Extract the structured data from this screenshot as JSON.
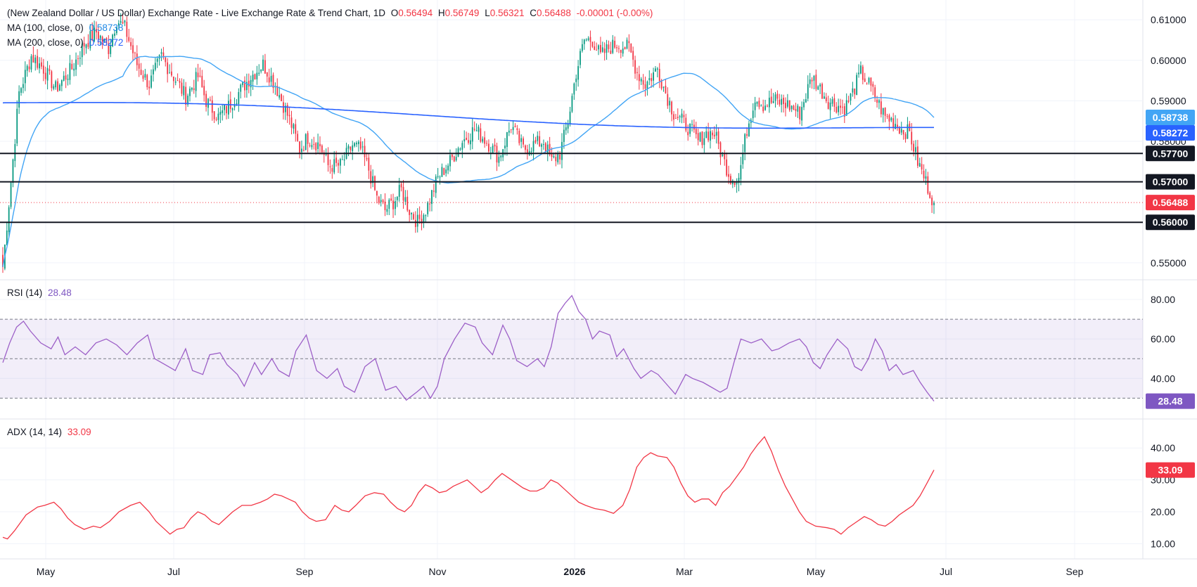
{
  "header": {
    "title": "(New Zealand Dollar / US Dollar) Exchange Rate - Live Exchange Rate & Trend Chart, 1D",
    "o_label": "O",
    "o_value": "0.56494",
    "h_label": "H",
    "h_value": "0.56749",
    "l_label": "L",
    "l_value": "0.56321",
    "c_label": "C",
    "c_value": "0.56488",
    "change": "-0.00001 (-0.00%)"
  },
  "indicators": {
    "ma100_label": "MA (100, close, 0)",
    "ma100_value": "0.58738",
    "ma200_label": "MA (200, close, 0)",
    "ma200_value": "0.58272",
    "rsi_label": "RSI (14)",
    "rsi_value": "28.48",
    "adx_label": "ADX (14, 14)",
    "adx_value": "33.09"
  },
  "colors": {
    "up": "#089981",
    "down": "#f23645",
    "ma100": "#42a5f5",
    "ma200": "#2962ff",
    "rsi": "#9c5fc7",
    "adx": "#f23645",
    "level": "#131722",
    "grid": "#f0f3fa"
  },
  "chart_data": [
    {
      "type": "candlestick",
      "title": "(New Zealand Dollar / US Dollar) Exchange Rate - Live Exchange Rate & Trend Chart, 1D",
      "x_ticks": [
        "May",
        "Jul",
        "Sep",
        "Nov",
        "2026",
        "Mar",
        "May",
        "Jul",
        "Sep"
      ],
      "y_ticks": [
        "0.61000",
        "0.60000",
        "0.59000",
        "0.58000",
        "0.55000"
      ],
      "ylim": [
        0.5465,
        0.6135
      ],
      "horizontal_levels": [
        {
          "label": "0.57700",
          "value": 0.577
        },
        {
          "label": "0.57000",
          "value": 0.57
        },
        {
          "label": "0.56000",
          "value": 0.56
        }
      ],
      "last_price": {
        "label": "0.56488",
        "value": 0.56488
      },
      "ma100_badge": "0.58738",
      "ma200_badge": "0.58272",
      "close_path": [
        [
          0,
          0.549
        ],
        [
          4,
          0.57
        ],
        [
          8,
          0.592
        ],
        [
          14,
          0.601
        ],
        [
          20,
          0.598
        ],
        [
          26,
          0.593
        ],
        [
          34,
          0.598
        ],
        [
          40,
          0.604
        ],
        [
          46,
          0.607
        ],
        [
          52,
          0.603
        ],
        [
          56,
          0.61
        ],
        [
          60,
          0.608
        ],
        [
          66,
          0.599
        ],
        [
          72,
          0.594
        ],
        [
          78,
          0.601
        ],
        [
          84,
          0.596
        ],
        [
          90,
          0.591
        ],
        [
          96,
          0.596
        ],
        [
          100,
          0.59
        ],
        [
          106,
          0.586
        ],
        [
          110,
          0.588
        ],
        [
          116,
          0.592
        ],
        [
          122,
          0.596
        ],
        [
          128,
          0.599
        ],
        [
          134,
          0.594
        ],
        [
          138,
          0.589
        ],
        [
          142,
          0.584
        ],
        [
          146,
          0.578
        ],
        [
          150,
          0.581
        ],
        [
          156,
          0.579
        ],
        [
          160,
          0.574
        ],
        [
          166,
          0.574
        ],
        [
          172,
          0.579
        ],
        [
          176,
          0.578
        ],
        [
          180,
          0.573
        ],
        [
          184,
          0.566
        ],
        [
          188,
          0.563
        ],
        [
          192,
          0.565
        ],
        [
          196,
          0.568
        ],
        [
          200,
          0.563
        ],
        [
          204,
          0.56
        ],
        [
          208,
          0.563
        ],
        [
          214,
          0.571
        ],
        [
          220,
          0.575
        ],
        [
          226,
          0.58
        ],
        [
          232,
          0.583
        ],
        [
          238,
          0.58
        ],
        [
          244,
          0.576
        ],
        [
          250,
          0.584
        ],
        [
          256,
          0.578
        ],
        [
          260,
          0.579
        ],
        [
          266,
          0.58
        ],
        [
          270,
          0.575
        ],
        [
          274,
          0.577
        ],
        [
          278,
          0.585
        ],
        [
          282,
          0.597
        ],
        [
          286,
          0.605
        ],
        [
          290,
          0.605
        ],
        [
          294,
          0.601
        ],
        [
          298,
          0.603
        ],
        [
          302,
          0.604
        ],
        [
          308,
          0.603
        ],
        [
          312,
          0.597
        ],
        [
          316,
          0.594
        ],
        [
          322,
          0.598
        ],
        [
          326,
          0.592
        ],
        [
          330,
          0.587
        ],
        [
          334,
          0.585
        ],
        [
          338,
          0.583
        ],
        [
          342,
          0.58
        ],
        [
          346,
          0.582
        ],
        [
          350,
          0.582
        ],
        [
          354,
          0.576
        ],
        [
          358,
          0.571
        ],
        [
          362,
          0.571
        ],
        [
          366,
          0.583
        ],
        [
          370,
          0.591
        ],
        [
          374,
          0.589
        ],
        [
          380,
          0.59
        ],
        [
          386,
          0.589
        ],
        [
          392,
          0.587
        ],
        [
          398,
          0.596
        ],
        [
          402,
          0.593
        ],
        [
          406,
          0.59
        ],
        [
          410,
          0.589
        ],
        [
          414,
          0.588
        ],
        [
          418,
          0.592
        ],
        [
          422,
          0.597
        ],
        [
          426,
          0.594
        ],
        [
          430,
          0.59
        ],
        [
          434,
          0.586
        ],
        [
          438,
          0.585
        ],
        [
          442,
          0.583
        ],
        [
          446,
          0.582
        ],
        [
          450,
          0.575
        ],
        [
          454,
          0.57
        ],
        [
          458,
          0.5649
        ]
      ]
    },
    {
      "type": "line",
      "title": "RSI (14)",
      "y_ticks": [
        "80.00",
        "60.00",
        "40.00"
      ],
      "ylim": [
        23,
        85
      ],
      "bands": [
        70,
        50,
        30
      ],
      "last_value": 28.48,
      "points": [
        [
          0,
          48
        ],
        [
          4,
          58
        ],
        [
          8,
          66
        ],
        [
          12,
          69
        ],
        [
          16,
          64
        ],
        [
          22,
          58
        ],
        [
          28,
          55
        ],
        [
          32,
          61
        ],
        [
          36,
          52
        ],
        [
          42,
          56
        ],
        [
          48,
          52
        ],
        [
          54,
          58
        ],
        [
          60,
          60
        ],
        [
          66,
          57
        ],
        [
          72,
          52
        ],
        [
          78,
          58
        ],
        [
          84,
          62
        ],
        [
          88,
          50
        ],
        [
          94,
          47
        ],
        [
          100,
          44
        ],
        [
          106,
          55
        ],
        [
          110,
          44
        ],
        [
          116,
          42
        ],
        [
          120,
          52
        ],
        [
          126,
          53
        ],
        [
          130,
          47
        ],
        [
          136,
          42
        ],
        [
          140,
          36
        ],
        [
          146,
          48
        ],
        [
          150,
          42
        ],
        [
          156,
          50
        ],
        [
          160,
          44
        ],
        [
          166,
          41
        ],
        [
          170,
          54
        ],
        [
          176,
          62
        ],
        [
          182,
          44
        ],
        [
          188,
          40
        ],
        [
          194,
          45
        ],
        [
          198,
          36
        ],
        [
          204,
          33
        ],
        [
          210,
          46
        ],
        [
          216,
          50
        ],
        [
          222,
          34
        ],
        [
          228,
          36
        ],
        [
          234,
          29
        ],
        [
          240,
          33
        ],
        [
          244,
          36
        ],
        [
          248,
          30
        ],
        [
          252,
          36
        ],
        [
          256,
          50
        ],
        [
          262,
          60
        ],
        [
          268,
          68
        ],
        [
          274,
          66
        ],
        [
          278,
          58
        ],
        [
          284,
          52
        ],
        [
          290,
          67
        ],
        [
          294,
          60
        ],
        [
          298,
          49
        ],
        [
          304,
          46
        ],
        [
          310,
          50
        ],
        [
          314,
          46
        ],
        [
          318,
          56
        ],
        [
          322,
          73
        ],
        [
          326,
          78
        ],
        [
          330,
          82
        ],
        [
          334,
          74
        ],
        [
          338,
          70
        ],
        [
          342,
          60
        ],
        [
          346,
          64
        ],
        [
          352,
          62
        ],
        [
          356,
          51
        ],
        [
          360,
          55
        ],
        [
          366,
          45
        ],
        [
          370,
          40
        ],
        [
          376,
          44
        ],
        [
          380,
          42
        ],
        [
          386,
          36
        ],
        [
          390,
          32
        ],
        [
          396,
          42
        ],
        [
          400,
          40
        ],
        [
          406,
          38
        ],
        [
          410,
          36
        ],
        [
          416,
          33
        ],
        [
          420,
          35
        ],
        [
          424,
          48
        ],
        [
          428,
          60
        ],
        [
          434,
          58
        ],
        [
          440,
          60
        ],
        [
          446,
          54
        ],
        [
          450,
          55
        ],
        [
          456,
          58
        ],
        [
          462,
          60
        ],
        [
          466,
          56
        ],
        [
          470,
          48
        ],
        [
          474,
          45
        ],
        [
          478,
          52
        ],
        [
          484,
          60
        ],
        [
          490,
          55
        ],
        [
          494,
          46
        ],
        [
          498,
          44
        ],
        [
          502,
          50
        ],
        [
          506,
          60
        ],
        [
          510,
          54
        ],
        [
          514,
          44
        ],
        [
          518,
          47
        ],
        [
          522,
          42
        ],
        [
          528,
          44
        ],
        [
          532,
          38
        ],
        [
          536,
          33
        ],
        [
          540,
          28.48
        ]
      ]
    },
    {
      "type": "line",
      "title": "ADX (14, 14)",
      "y_ticks": [
        "40.00",
        "30.00",
        "20.00",
        "10.00"
      ],
      "ylim": [
        7,
        46
      ],
      "last_value": 33.09,
      "points": [
        [
          0,
          12
        ],
        [
          4,
          11.5
        ],
        [
          10,
          14
        ],
        [
          20,
          19
        ],
        [
          30,
          21.5
        ],
        [
          36,
          22
        ],
        [
          44,
          23
        ],
        [
          50,
          21
        ],
        [
          56,
          18
        ],
        [
          62,
          16
        ],
        [
          70,
          14.5
        ],
        [
          78,
          15.5
        ],
        [
          84,
          15
        ],
        [
          92,
          17
        ],
        [
          100,
          20
        ],
        [
          110,
          22
        ],
        [
          118,
          23
        ],
        [
          126,
          20
        ],
        [
          132,
          17
        ],
        [
          138,
          15
        ],
        [
          144,
          13
        ],
        [
          150,
          14.5
        ],
        [
          156,
          15
        ],
        [
          162,
          18
        ],
        [
          168,
          20
        ],
        [
          174,
          19
        ],
        [
          180,
          17
        ],
        [
          186,
          16
        ],
        [
          192,
          18
        ],
        [
          198,
          20
        ],
        [
          206,
          22
        ],
        [
          214,
          22
        ],
        [
          222,
          23
        ],
        [
          228,
          24
        ],
        [
          234,
          25.5
        ],
        [
          240,
          25
        ],
        [
          246,
          24
        ],
        [
          252,
          23
        ],
        [
          258,
          20
        ],
        [
          264,
          18
        ],
        [
          270,
          17
        ],
        [
          278,
          17.5
        ],
        [
          286,
          22
        ],
        [
          292,
          20.5
        ],
        [
          298,
          20
        ],
        [
          304,
          22
        ],
        [
          312,
          25
        ],
        [
          320,
          26
        ],
        [
          328,
          25.5
        ],
        [
          334,
          23
        ],
        [
          340,
          21
        ],
        [
          346,
          20
        ],
        [
          352,
          22
        ],
        [
          358,
          26
        ],
        [
          364,
          28.5
        ],
        [
          370,
          27.5
        ],
        [
          376,
          26
        ],
        [
          382,
          26.5
        ],
        [
          388,
          28
        ],
        [
          394,
          29
        ],
        [
          400,
          30
        ],
        [
          406,
          28
        ],
        [
          412,
          26
        ],
        [
          418,
          27.5
        ],
        [
          424,
          30
        ],
        [
          430,
          32
        ],
        [
          436,
          30.5
        ],
        [
          442,
          29
        ],
        [
          448,
          27.5
        ],
        [
          454,
          26.5
        ],
        [
          460,
          26.5
        ],
        [
          466,
          27.5
        ],
        [
          472,
          30
        ],
        [
          478,
          29
        ],
        [
          484,
          27
        ],
        [
          490,
          25
        ],
        [
          496,
          23
        ],
        [
          502,
          22
        ],
        [
          510,
          21
        ],
        [
          518,
          20.5
        ],
        [
          526,
          19.5
        ],
        [
          534,
          22
        ],
        [
          540,
          27
        ],
        [
          546,
          34
        ],
        [
          552,
          37
        ],
        [
          558,
          38.5
        ],
        [
          564,
          37.5
        ],
        [
          572,
          37
        ],
        [
          578,
          34
        ],
        [
          584,
          29
        ],
        [
          590,
          25
        ],
        [
          596,
          23
        ],
        [
          602,
          24
        ],
        [
          608,
          24
        ],
        [
          614,
          22
        ],
        [
          620,
          26
        ],
        [
          626,
          28
        ],
        [
          632,
          31
        ],
        [
          638,
          34
        ],
        [
          644,
          38
        ],
        [
          650,
          41
        ],
        [
          656,
          43.5
        ],
        [
          662,
          39
        ],
        [
          668,
          33
        ],
        [
          674,
          28
        ],
        [
          680,
          24
        ],
        [
          686,
          20
        ],
        [
          692,
          17
        ],
        [
          700,
          15.5
        ],
        [
          710,
          15
        ],
        [
          716,
          14.5
        ],
        [
          722,
          13
        ],
        [
          728,
          15
        ],
        [
          736,
          17
        ],
        [
          742,
          18.5
        ],
        [
          748,
          17.5
        ],
        [
          754,
          16
        ],
        [
          760,
          15.5
        ],
        [
          766,
          17
        ],
        [
          772,
          19
        ],
        [
          778,
          20.5
        ],
        [
          784,
          22
        ],
        [
          790,
          25
        ],
        [
          796,
          29
        ],
        [
          802,
          33.09
        ]
      ]
    }
  ]
}
